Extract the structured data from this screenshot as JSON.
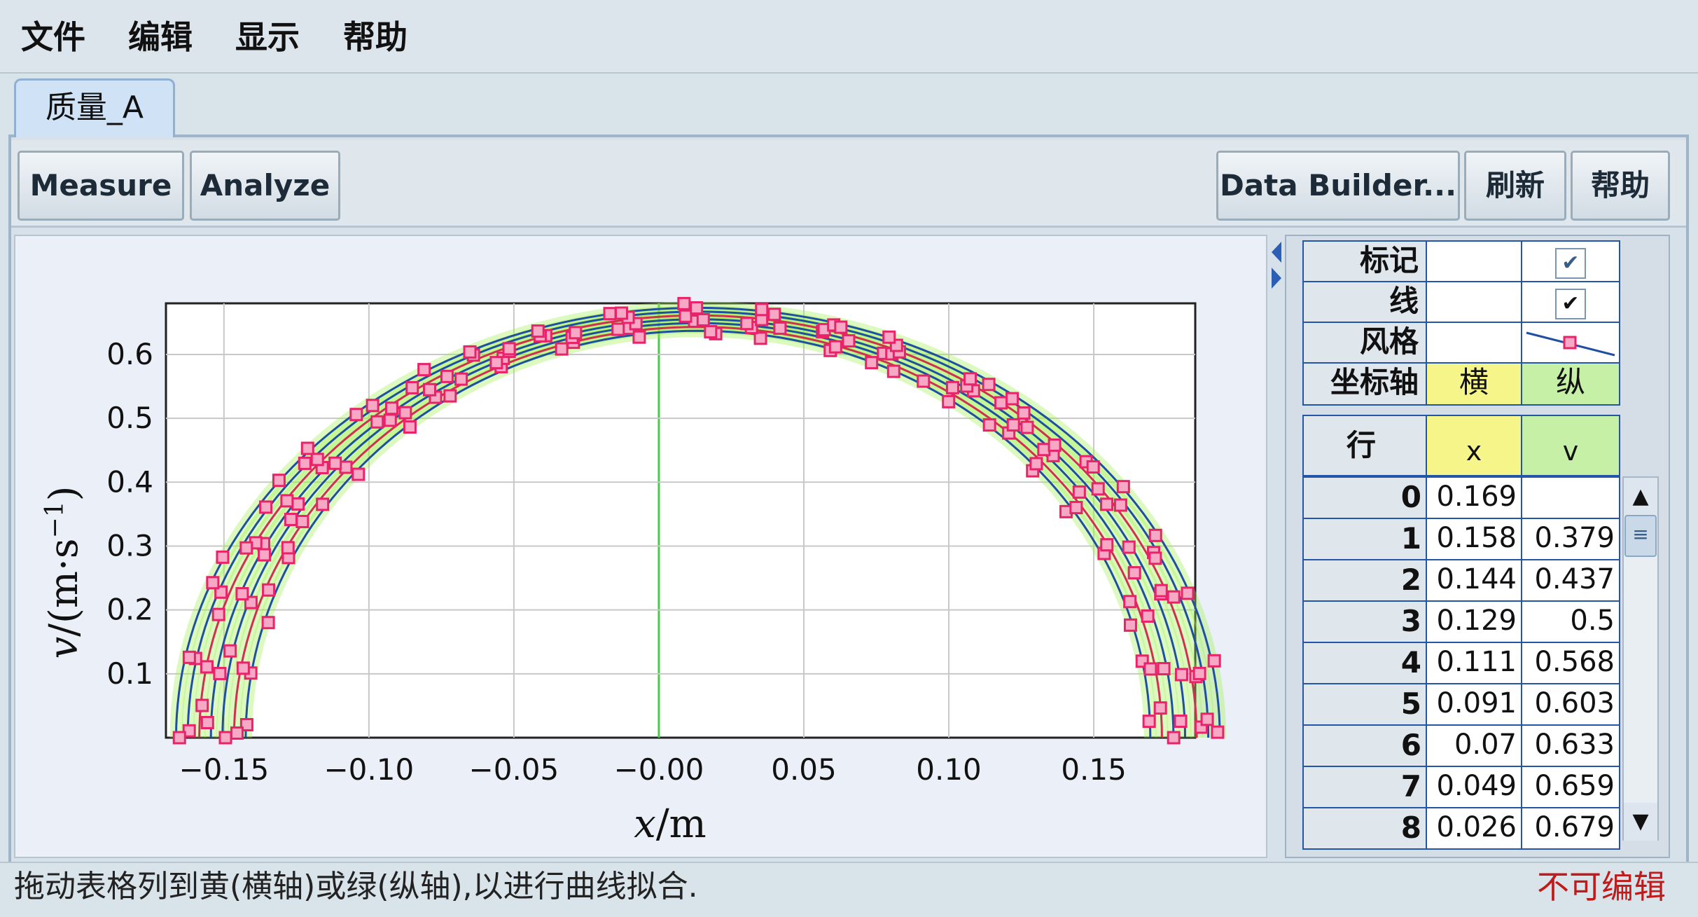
{
  "menu": {
    "file": "文件",
    "edit": "编辑",
    "display": "显示",
    "help": "帮助"
  },
  "tab": {
    "label": "质量_A"
  },
  "toolbar": {
    "measure": "Measure",
    "analyze": "Analyze",
    "data_builder": "Data Builder...",
    "refresh": "刷新",
    "help": "帮助"
  },
  "options": {
    "marker_label": "标记",
    "line_label": "线",
    "style_label": "风格",
    "axis_label": "坐标轴",
    "axis_h": "横",
    "axis_v": "纵",
    "marker_checked": "✔",
    "line_checked": "✔"
  },
  "table": {
    "headers": {
      "row": "行",
      "x": "x",
      "v": "v"
    },
    "rows": [
      {
        "i": "0",
        "x": "0.169",
        "v": ""
      },
      {
        "i": "1",
        "x": "0.158",
        "v": "0.379"
      },
      {
        "i": "2",
        "x": "0.144",
        "v": "0.437"
      },
      {
        "i": "3",
        "x": "0.129",
        "v": "0.5"
      },
      {
        "i": "4",
        "x": "0.111",
        "v": "0.568"
      },
      {
        "i": "5",
        "x": "0.091",
        "v": "0.603"
      },
      {
        "i": "6",
        "x": "0.07",
        "v": "0.633"
      },
      {
        "i": "7",
        "x": "0.049",
        "v": "0.659"
      },
      {
        "i": "8",
        "x": "0.026",
        "v": "0.679"
      }
    ]
  },
  "status": {
    "hint": "拖动表格列到黄(横轴)或绿(纵轴),以进行曲线拟合.",
    "edit_state": "不可编辑"
  },
  "colors": {
    "marker": "#e8236a",
    "fit_line": "#1f4fa0",
    "highlight": "#9cf04a",
    "zero_line": "#44cc44"
  },
  "chart_data": {
    "type": "scatter",
    "xlabel_var": "x",
    "xlabel_unit": "/m",
    "ylabel_var": "v",
    "ylabel_unit": "/(m·s",
    "ylabel_exp": "−1",
    "ylabel_close": ")",
    "xlim": [
      -0.17,
      0.185
    ],
    "ylim": [
      0,
      0.68
    ],
    "xticks": [
      -0.15,
      -0.1,
      -0.05,
      0.0,
      0.05,
      0.1,
      0.15
    ],
    "xtick_labels": [
      "−0.15",
      "−0.10",
      "−0.05",
      "−0.00",
      "0.05",
      "0.10",
      "0.15"
    ],
    "yticks": [
      0.1,
      0.2,
      0.3,
      0.4,
      0.5,
      0.6
    ],
    "ytick_labels": [
      "0.1",
      "0.2",
      "0.3",
      "0.4",
      "0.5",
      "0.6"
    ],
    "grid": true,
    "series": [
      {
        "x": [
          0.169,
          0.158,
          0.144,
          0.129,
          0.111,
          0.091,
          0.07,
          0.049,
          0.026
        ],
        "y": [
          0.0,
          0.379,
          0.437,
          0.5,
          0.568,
          0.603,
          0.633,
          0.659,
          0.679
        ]
      }
    ]
  }
}
